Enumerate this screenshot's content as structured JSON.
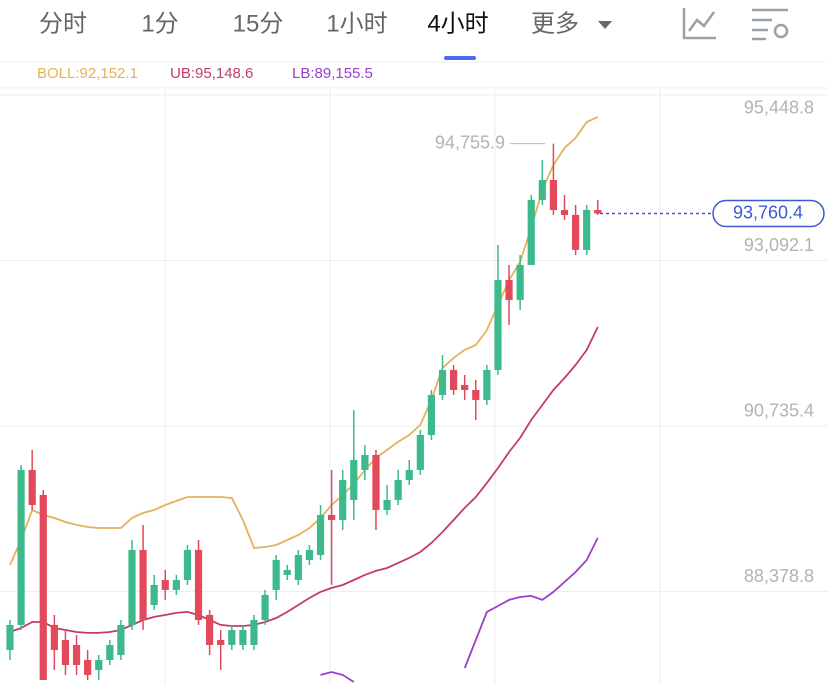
{
  "tabs": [
    "分时",
    "1分",
    "15分",
    "1小时",
    "4小时",
    "更多"
  ],
  "active_tab": 4,
  "chart_data": {
    "type": "candlestick",
    "legend": [
      {
        "label": "BOLL:92,152.1",
        "color": "#e3b25a"
      },
      {
        "label": "UB:95,148.6",
        "color": "#c63a6a"
      },
      {
        "label": "LB:89,155.5",
        "color": "#9a3fcc"
      }
    ],
    "up_color": "#3cba8c",
    "down_color": "#e2495a",
    "ylim": [
      87061,
      95548
    ],
    "yticks": [
      {
        "value": 95448.8,
        "label": "95,448.8"
      },
      {
        "value": 93092.1,
        "label": "93,092.1"
      },
      {
        "value": 90735.4,
        "label": "90,735.4"
      },
      {
        "value": 88378.8,
        "label": "88,378.8"
      }
    ],
    "grid": true,
    "open": [
      87546,
      87902,
      90109,
      89753,
      87902,
      87688,
      87617,
      87403,
      87261,
      87403,
      87474,
      87902,
      88970,
      88186,
      88542,
      88400,
      88542,
      88970,
      88044,
      87688,
      87617,
      87617,
      87617,
      87973,
      88400,
      88614,
      88542,
      88827,
      88898,
      89468,
      89397,
      89682,
      90109,
      90322,
      89539,
      89682,
      89966,
      90109,
      90607,
      91177,
      91533,
      91319,
      91248,
      91106,
      91533,
      92814,
      92530,
      93028,
      93954,
      94238,
      93811,
      93740,
      93242,
      93811
    ],
    "high": [
      87973,
      90180,
      90394,
      89824,
      88044,
      87830,
      87759,
      87546,
      87474,
      87688,
      87973,
      89112,
      89326,
      88614,
      88685,
      88614,
      89041,
      89112,
      88115,
      87830,
      87902,
      87902,
      88044,
      88400,
      88898,
      88756,
      88970,
      89041,
      89610,
      90109,
      90109,
      90963,
      90465,
      90394,
      89895,
      90109,
      90251,
      90678,
      91248,
      91746,
      91604,
      91462,
      91390,
      91604,
      93313,
      93028,
      93170,
      94025,
      94523,
      94755.9,
      94025,
      93882,
      93882,
      93954
    ],
    "low": [
      87403,
      87830,
      89539,
      87118,
      87261,
      87190,
      87190,
      87118,
      87118,
      87332,
      87403,
      87830,
      87830,
      88115,
      88258,
      88329,
      88471,
      87902,
      87474,
      87261,
      87546,
      87546,
      87546,
      87902,
      88258,
      88542,
      88471,
      88756,
      88827,
      88471,
      89254,
      89397,
      89966,
      89254,
      89468,
      89610,
      89895,
      90038,
      90536,
      91106,
      91177,
      91106,
      90821,
      91034,
      91462,
      92174,
      92387,
      93028,
      93882,
      93740,
      93669,
      93170,
      93170,
      93740
    ],
    "close": [
      87902,
      90109,
      89610,
      87118,
      87546,
      87332,
      87332,
      87190,
      87403,
      87617,
      87902,
      88970,
      87973,
      88471,
      88400,
      88542,
      88970,
      87973,
      87617,
      87617,
      87830,
      87830,
      87973,
      88329,
      88827,
      88685,
      88898,
      88970,
      89468,
      89397,
      89966,
      90251,
      90322,
      89539,
      89682,
      89966,
      90109,
      90607,
      91177,
      91533,
      91248,
      91248,
      91106,
      91533,
      92814,
      92530,
      93028,
      93954,
      94238,
      93811,
      93740,
      93242,
      93811,
      93760.4
    ],
    "lines": [
      {
        "color": "#e3b25a",
        "values": [
          88756,
          89112,
          89539,
          89468,
          89425,
          89368,
          89326,
          89297,
          89283,
          89283,
          89283,
          89425,
          89497,
          89539,
          89610,
          89667,
          89724,
          89724,
          89724,
          89724,
          89710,
          89397,
          88998,
          89012,
          89041,
          89112,
          89183,
          89283,
          89425,
          89610,
          89753,
          89909,
          90109,
          90280,
          90394,
          90508,
          90607,
          90750,
          91106,
          91561,
          91704,
          91818,
          91889,
          92102,
          92458,
          92814,
          93071,
          93555,
          94096,
          94452,
          94694,
          94837,
          95064,
          95136
        ]
      },
      {
        "color": "#c63a6a",
        "values": [
          87802,
          87859,
          87944,
          87944,
          87859,
          87830,
          87802,
          87788,
          87788,
          87802,
          87830,
          87902,
          87973,
          88016,
          88044,
          88073,
          88087,
          88044,
          87973,
          87902,
          87887,
          87887,
          87902,
          87944,
          88001,
          88087,
          88186,
          88286,
          88372,
          88429,
          88471,
          88542,
          88614,
          88671,
          88713,
          88785,
          88856,
          88941,
          89069,
          89226,
          89397,
          89568,
          89724,
          89924,
          90137,
          90365,
          90565,
          90821,
          91034,
          91248,
          91419,
          91604,
          91818,
          92145
        ]
      },
      {
        "color": "#9a3fcc",
        "values": [
          null,
          null,
          null,
          null,
          null,
          null,
          null,
          null,
          null,
          null,
          null,
          null,
          null,
          null,
          null,
          null,
          null,
          null,
          null,
          null,
          null,
          null,
          null,
          null,
          null,
          null,
          null,
          null,
          87190,
          87232,
          87190,
          87090,
          null,
          null,
          null,
          null,
          null,
          null,
          null,
          null,
          null,
          87289,
          87688,
          88087,
          88172,
          88258,
          88300,
          88315,
          88258,
          88372,
          88514,
          88656,
          88827,
          89141
        ]
      }
    ],
    "high_label": {
      "value": 94755.9,
      "label": "94,755.9"
    },
    "current_price": {
      "value": 93760.4,
      "label": "93,760.4"
    },
    "current_color": "#3a5bd0"
  }
}
